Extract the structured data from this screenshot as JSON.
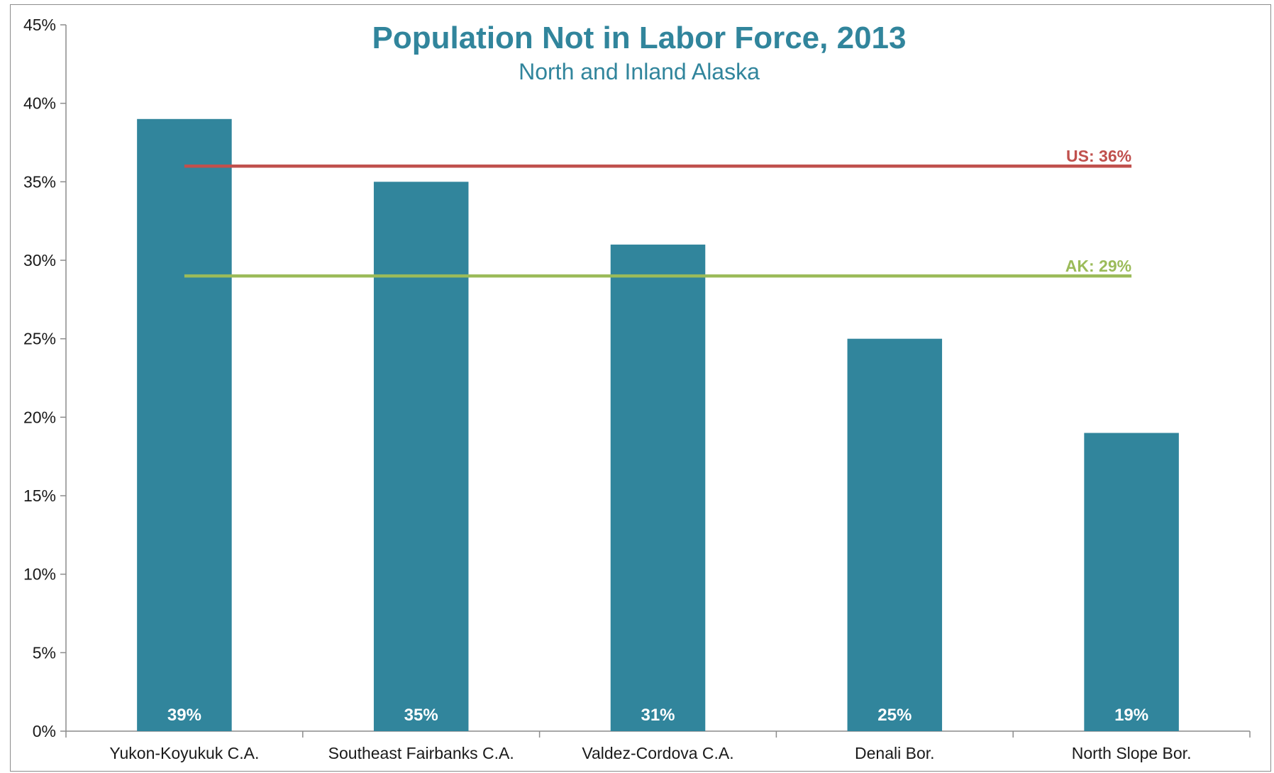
{
  "chart_data": {
    "type": "bar",
    "title": "Population Not in Labor Force, 2013",
    "subtitle": "North and Inland Alaska",
    "categories": [
      "Yukon-Koyukuk C.A.",
      "Southeast Fairbanks C.A.",
      "Valdez-Cordova C.A.",
      "Denali Bor.",
      "North Slope Bor."
    ],
    "values": [
      39,
      35,
      31,
      25,
      19
    ],
    "data_labels": [
      "39%",
      "35%",
      "31%",
      "25%",
      "19%"
    ],
    "ylim": [
      0,
      45
    ],
    "yticks": [
      0,
      5,
      10,
      15,
      20,
      25,
      30,
      35,
      40,
      45
    ],
    "ytick_labels": [
      "0%",
      "5%",
      "10%",
      "15%",
      "20%",
      "25%",
      "30%",
      "35%",
      "40%",
      "45%"
    ],
    "xlabel": "",
    "ylabel": "",
    "grid": false,
    "legend": "none",
    "reference_lines": [
      {
        "label": "US: 36%",
        "value": 36,
        "color": "#c0504d"
      },
      {
        "label": "AK: 29%",
        "value": 29,
        "color": "#9bbb59"
      }
    ],
    "colors": {
      "bar": "#31859c",
      "title": "#31859c",
      "axis": "#8c8c8c"
    }
  }
}
